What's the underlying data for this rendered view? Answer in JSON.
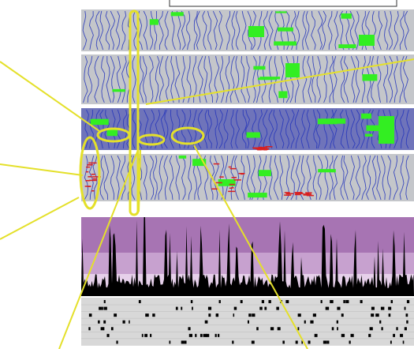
{
  "colors": {
    "background": "#ffffff",
    "strip_gray": "#c4c6ca",
    "strip_purple": "#6f74ba",
    "trace_blue": "#2233bb",
    "highlight_green": "#33ee22",
    "event_red": "#d82020",
    "annotation_yellow": "#e4e02a",
    "band_purple_dark": "#a774b3",
    "band_purple_mid": "#c7a1cf",
    "band_purple_light": "#e6d0ea",
    "histogram_black": "#000000",
    "raster_background": "#d8d8d8",
    "raster_tick": "#000000"
  },
  "image_strips": [
    {
      "name": "strip-1",
      "tint": "gray"
    },
    {
      "name": "strip-2",
      "tint": "gray"
    },
    {
      "name": "strip-3",
      "tint": "purple"
    },
    {
      "name": "strip-4",
      "tint": "gray"
    }
  ],
  "annotations": {
    "ellipse_count": 5,
    "vertical_marker": true,
    "pointer_line_count": 7
  },
  "histogram_panel": {
    "background_bands": [
      "dark",
      "mid",
      "light"
    ]
  },
  "raster_panel": {
    "row_count": 7
  }
}
